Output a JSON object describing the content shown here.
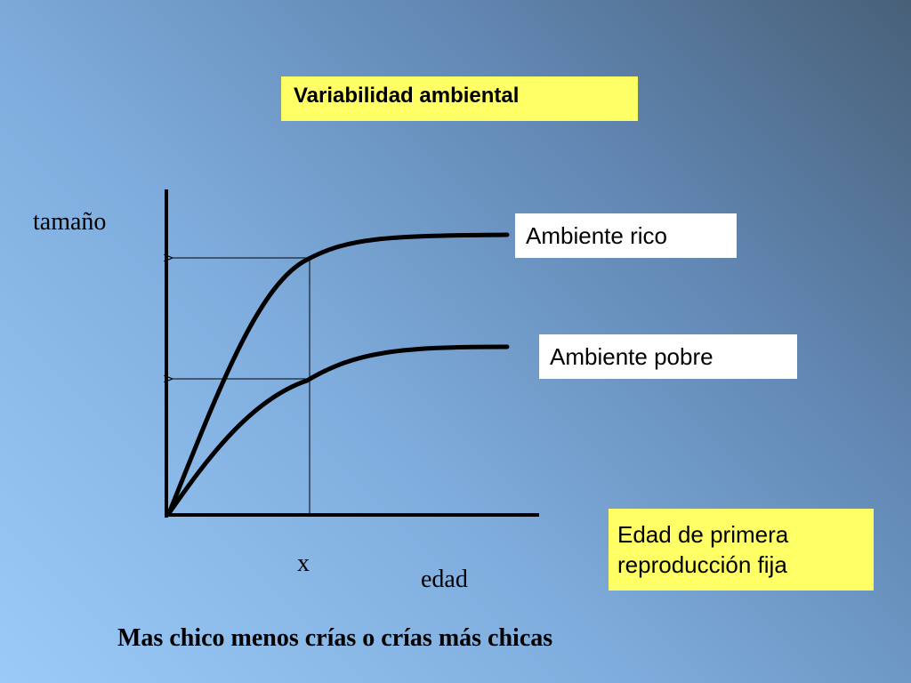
{
  "title": "Variabilidad ambiental",
  "axes": {
    "y_label": "tamaño",
    "x_label": "edad",
    "x_mark": "x"
  },
  "curves": [
    {
      "label": "Ambiente rico"
    },
    {
      "label": "Ambiente pobre"
    }
  ],
  "note": "Edad de primera reproducción fija",
  "conclusion": "Mas chico menos crías o crías más chicas",
  "colors": {
    "title_box": "#ffff66",
    "note_box": "#ffff66",
    "label_box": "#ffffff",
    "lines": "#000000"
  }
}
